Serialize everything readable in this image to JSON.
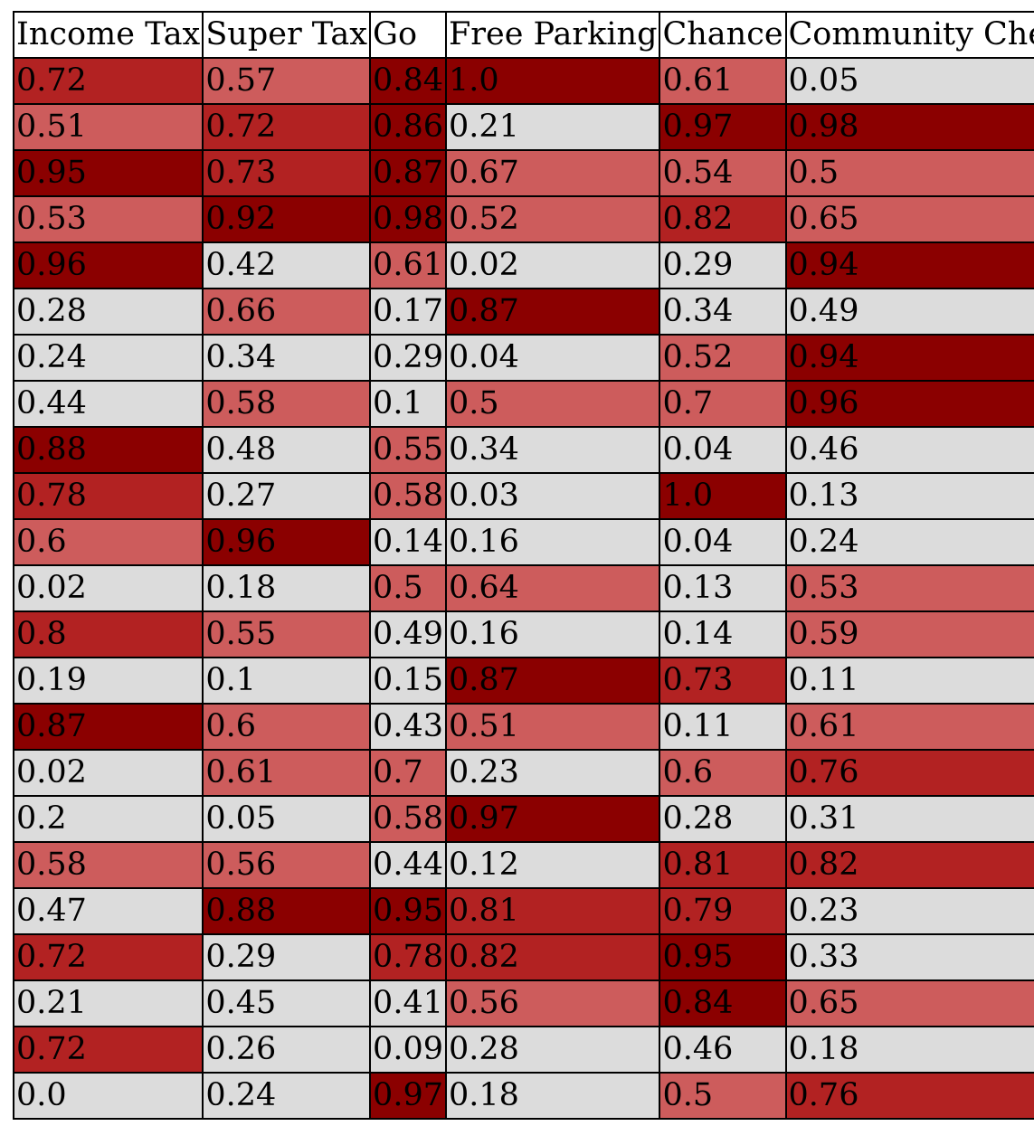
{
  "chart_data": {
    "type": "heatmap",
    "columns": [
      "Income Tax",
      "Super Tax",
      "Go",
      "Free Parking",
      "Chance",
      "Community Chest"
    ],
    "rows": [
      [
        "0.72",
        "0.57",
        "0.84",
        "1.0",
        "0.61",
        "0.05"
      ],
      [
        "0.51",
        "0.72",
        "0.86",
        "0.21",
        "0.97",
        "0.98"
      ],
      [
        "0.95",
        "0.73",
        "0.87",
        "0.67",
        "0.54",
        "0.5"
      ],
      [
        "0.53",
        "0.92",
        "0.98",
        "0.52",
        "0.82",
        "0.65"
      ],
      [
        "0.96",
        "0.42",
        "0.61",
        "0.02",
        "0.29",
        "0.94"
      ],
      [
        "0.28",
        "0.66",
        "0.17",
        "0.87",
        "0.34",
        "0.49"
      ],
      [
        "0.24",
        "0.34",
        "0.29",
        "0.04",
        "0.52",
        "0.94"
      ],
      [
        "0.44",
        "0.58",
        "0.1",
        "0.5",
        "0.7",
        "0.96"
      ],
      [
        "0.88",
        "0.48",
        "0.55",
        "0.34",
        "0.04",
        "0.46"
      ],
      [
        "0.78",
        "0.27",
        "0.58",
        "0.03",
        "1.0",
        "0.13"
      ],
      [
        "0.6",
        "0.96",
        "0.14",
        "0.16",
        "0.04",
        "0.24"
      ],
      [
        "0.02",
        "0.18",
        "0.5",
        "0.64",
        "0.13",
        "0.53"
      ],
      [
        "0.8",
        "0.55",
        "0.49",
        "0.16",
        "0.14",
        "0.59"
      ],
      [
        "0.19",
        "0.1",
        "0.15",
        "0.87",
        "0.73",
        "0.11"
      ],
      [
        "0.87",
        "0.6",
        "0.43",
        "0.51",
        "0.11",
        "0.61"
      ],
      [
        "0.02",
        "0.61",
        "0.7",
        "0.23",
        "0.6",
        "0.76"
      ],
      [
        "0.2",
        "0.05",
        "0.58",
        "0.97",
        "0.28",
        "0.31"
      ],
      [
        "0.58",
        "0.56",
        "0.44",
        "0.12",
        "0.81",
        "0.82"
      ],
      [
        "0.47",
        "0.88",
        "0.95",
        "0.81",
        "0.79",
        "0.23"
      ],
      [
        "0.72",
        "0.29",
        "0.78",
        "0.82",
        "0.95",
        "0.33"
      ],
      [
        "0.21",
        "0.45",
        "0.41",
        "0.56",
        "0.84",
        "0.65"
      ],
      [
        "0.72",
        "0.26",
        "0.09",
        "0.28",
        "0.46",
        "0.18"
      ],
      [
        "0.0",
        "0.24",
        "0.97",
        "0.18",
        "0.5",
        "0.76"
      ]
    ],
    "colors": {
      "low": "#dcdcdc",
      "medium": "#cd5c5c",
      "high": "#b22222",
      "very_high": "#8b0000"
    }
  }
}
